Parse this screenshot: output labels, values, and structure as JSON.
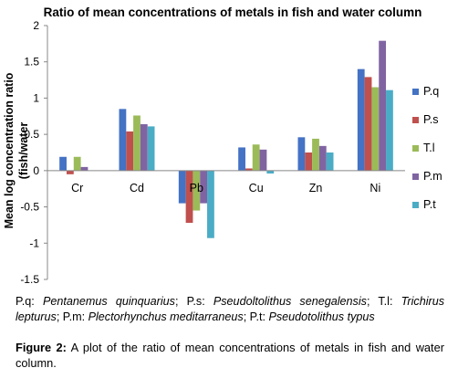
{
  "chart_data": {
    "type": "bar",
    "title": "Ratio of mean concentrations of metals in fish and water column",
    "ylabel_line1": "Mean log concentration ratio",
    "ylabel_line2": "(fish/water",
    "xlabel": "",
    "categories": [
      "Cr",
      "Cd",
      "Pb",
      "Cu",
      "Zn",
      "Ni"
    ],
    "ylim": [
      -1.5,
      2
    ],
    "yticks": [
      -1.5,
      -1,
      -0.5,
      0,
      0.5,
      1,
      1.5,
      2
    ],
    "ytick_labels": [
      "-1.5",
      "-1",
      "-0.5",
      "0",
      "0.5",
      "1",
      "1.5",
      "2"
    ],
    "legend_position": "right",
    "series": [
      {
        "name": "P.q",
        "color": "#4472C4",
        "values": [
          0.19,
          0.85,
          -0.45,
          0.32,
          0.46,
          1.4
        ]
      },
      {
        "name": "P.s",
        "color": "#C0504D",
        "values": [
          -0.05,
          0.54,
          -0.72,
          0.03,
          0.25,
          1.29
        ]
      },
      {
        "name": "T.l",
        "color": "#9BBB59",
        "values": [
          0.19,
          0.76,
          -0.55,
          0.36,
          0.44,
          1.15
        ]
      },
      {
        "name": "P.m",
        "color": "#8064A2",
        "values": [
          0.05,
          0.64,
          -0.45,
          0.29,
          0.34,
          1.79
        ]
      },
      {
        "name": "P.t",
        "color": "#4BACC6",
        "values": [
          0.0,
          0.61,
          -0.93,
          -0.04,
          0.25,
          1.11
        ]
      }
    ]
  },
  "note": {
    "pq_abbr": "P.q:",
    "pq_name": "Pentanemus quinquarius",
    "ps_abbr": "; P.s:",
    "ps_name": "Pseudoltolithus senegalensis",
    "tl_abbr": "; T.l:",
    "tl_name": "Trichirus lepturus",
    "pm_abbr": "; P.m:",
    "pm_name": "Plectorhynchus meditarraneus",
    "pt_abbr": "; P.t:",
    "pt_name": "Pseudotolithus typus"
  },
  "caption": {
    "label": "Figure 2:",
    "text": " A plot of the ratio of mean concentrations of metals in fish and water column."
  }
}
